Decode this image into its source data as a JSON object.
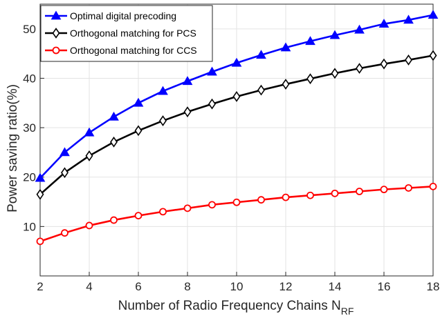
{
  "chart_data": {
    "type": "line",
    "title": "",
    "xlabel": "Number of Radio Frequency Chains N",
    "xlabel_subscript": "RF",
    "ylabel": "Power saving ratio(%)",
    "xlim": [
      2,
      18
    ],
    "ylim": [
      0,
      55
    ],
    "xticks": [
      2,
      4,
      6,
      8,
      10,
      12,
      14,
      16,
      18
    ],
    "yticks": [
      10,
      20,
      30,
      40,
      50
    ],
    "grid": true,
    "legend_position": "top-left",
    "x": [
      2,
      3,
      4,
      5,
      6,
      7,
      8,
      9,
      10,
      11,
      12,
      13,
      14,
      15,
      16,
      17,
      18
    ],
    "series": [
      {
        "name": "Optimal digital precoding",
        "color": "#0000ff",
        "marker": "triangle",
        "values": [
          19.8,
          25.0,
          29.0,
          32.2,
          35.0,
          37.4,
          39.4,
          41.3,
          43.1,
          44.7,
          46.2,
          47.5,
          48.7,
          49.8,
          51.0,
          51.8,
          52.8
        ]
      },
      {
        "name": "Orthogonal matching for PCS",
        "color": "#000000",
        "marker": "diamond",
        "values": [
          16.5,
          20.9,
          24.3,
          27.1,
          29.4,
          31.4,
          33.2,
          34.8,
          36.3,
          37.6,
          38.8,
          39.9,
          41.0,
          42.0,
          42.9,
          43.7,
          44.6
        ]
      },
      {
        "name": "Orthogonal matching for CCS",
        "color": "#ff0000",
        "marker": "circle",
        "values": [
          7.0,
          8.7,
          10.2,
          11.3,
          12.2,
          13.0,
          13.7,
          14.4,
          14.9,
          15.4,
          15.9,
          16.3,
          16.7,
          17.1,
          17.5,
          17.8,
          18.1
        ]
      }
    ]
  }
}
